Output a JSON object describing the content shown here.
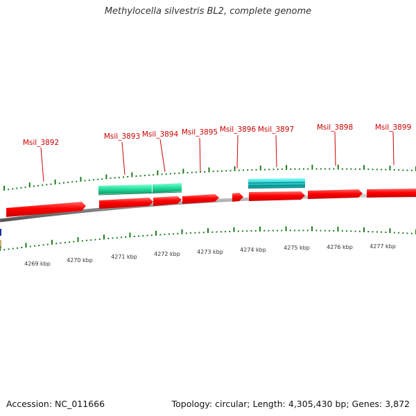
{
  "title": "Methylocella silvestris BL2, complete genome",
  "footer": {
    "accession": "Accession: NC_011666",
    "stats": "Topology: circular; Length: 4,305,430 bp; Genes: 3,872"
  },
  "colors": {
    "gene": "#ff0000",
    "gene_label": "#cc0000",
    "tick": "#1a7a1a",
    "backbone": "#8a8a8a",
    "feature_green": "#22dd99",
    "feature_cyan": "#22cccc",
    "axis_label": "#333333"
  },
  "genes": [
    {
      "name": "Msil_3892"
    },
    {
      "name": "Msil_3893"
    },
    {
      "name": "Msil_3894"
    },
    {
      "name": "Msil_3895"
    },
    {
      "name": "Msil_3896"
    },
    {
      "name": "Msil_3897"
    },
    {
      "name": "Msil_3898"
    },
    {
      "name": "Msil_3899"
    }
  ],
  "scale_labels": [
    "4269 kbp",
    "4270 kbp",
    "4271 kbp",
    "4272 kbp",
    "4273 kbp",
    "4274 kbp",
    "4275 kbp",
    "4276 kbp",
    "4277 kbp"
  ]
}
